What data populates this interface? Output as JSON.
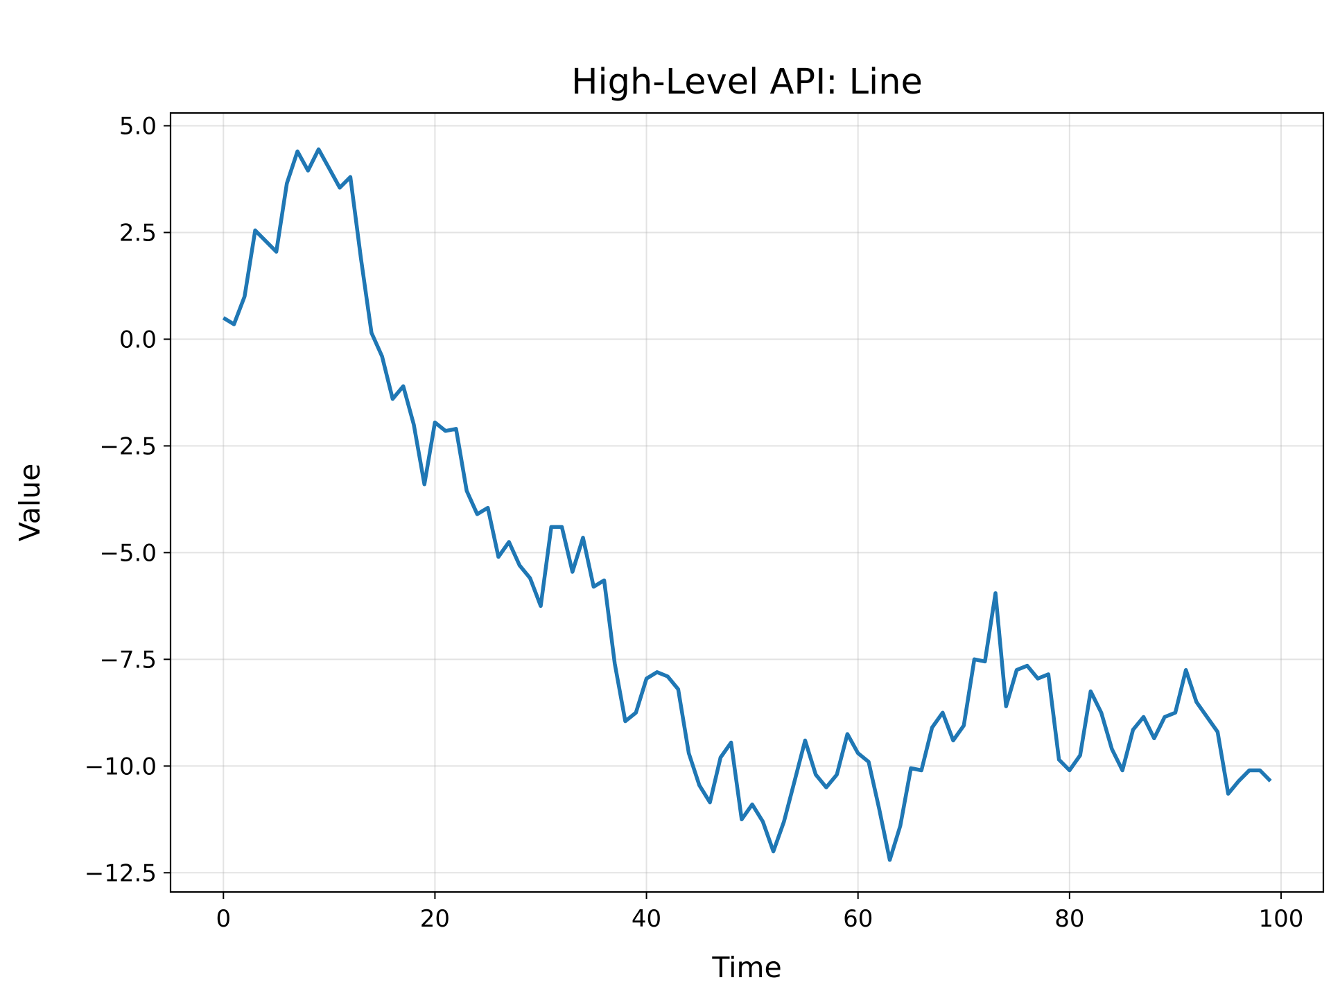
{
  "chart_data": {
    "type": "line",
    "title": "High-Level API: Line",
    "xlabel": "Time",
    "ylabel": "Value",
    "xlim": [
      -5,
      104
    ],
    "ylim": [
      -12.95,
      5.3
    ],
    "grid": true,
    "x_ticks": [
      0,
      20,
      40,
      60,
      80,
      100
    ],
    "x_tick_labels": [
      "0",
      "20",
      "40",
      "60",
      "80",
      "100"
    ],
    "y_ticks": [
      5.0,
      2.5,
      0.0,
      -2.5,
      -5.0,
      -7.5,
      -10.0,
      -12.5
    ],
    "y_tick_labels": [
      "5.0",
      "2.5",
      "0.0",
      "−2.5",
      "−5.0",
      "−7.5",
      "−10.0",
      "−12.5"
    ],
    "series": [
      {
        "color": "#1f77b4",
        "x": [
          0,
          1,
          2,
          3,
          4,
          5,
          6,
          7,
          8,
          9,
          10,
          11,
          12,
          13,
          14,
          15,
          16,
          17,
          18,
          19,
          20,
          21,
          22,
          23,
          24,
          25,
          26,
          27,
          28,
          29,
          30,
          31,
          32,
          33,
          34,
          35,
          36,
          37,
          38,
          39,
          40,
          41,
          42,
          43,
          44,
          45,
          46,
          47,
          48,
          49,
          50,
          51,
          52,
          53,
          54,
          55,
          56,
          57,
          58,
          59,
          60,
          61,
          62,
          63,
          64,
          65,
          66,
          67,
          68,
          69,
          70,
          71,
          72,
          73,
          74,
          75,
          76,
          77,
          78,
          79,
          80,
          81,
          82,
          83,
          84,
          85,
          86,
          87,
          88,
          89,
          90,
          91,
          92,
          93,
          94,
          95,
          96,
          97,
          98,
          99
        ],
        "y": [
          0.5,
          0.35,
          1.0,
          2.55,
          2.3,
          2.05,
          3.65,
          4.4,
          3.95,
          4.45,
          4.0,
          3.55,
          3.8,
          1.9,
          0.15,
          -0.4,
          -1.4,
          -1.1,
          -2.0,
          -3.4,
          -1.95,
          -2.15,
          -2.1,
          -3.55,
          -4.1,
          -3.95,
          -5.1,
          -4.75,
          -5.3,
          -5.6,
          -6.25,
          -4.4,
          -4.4,
          -5.45,
          -4.65,
          -5.8,
          -5.65,
          -7.6,
          -8.95,
          -8.75,
          -7.95,
          -7.8,
          -7.9,
          -8.2,
          -9.7,
          -10.45,
          -10.85,
          -9.8,
          -9.45,
          -11.25,
          -10.9,
          -11.3,
          -12.0,
          -11.3,
          -10.35,
          -9.4,
          -10.2,
          -10.5,
          -10.2,
          -9.25,
          -9.7,
          -9.9,
          -11.0,
          -12.2,
          -11.4,
          -10.05,
          -10.1,
          -9.1,
          -8.75,
          -9.4,
          -9.05,
          -7.5,
          -7.55,
          -5.95,
          -8.6,
          -7.75,
          -7.65,
          -7.95,
          -7.85,
          -9.85,
          -10.1,
          -9.75,
          -8.25,
          -8.75,
          -9.6,
          -10.1,
          -9.15,
          -8.85,
          -9.35,
          -8.85,
          -8.75,
          -7.75,
          -8.5,
          -8.85,
          -9.2,
          -10.65,
          -10.35,
          -10.1,
          -10.1,
          -10.35
        ]
      }
    ]
  }
}
